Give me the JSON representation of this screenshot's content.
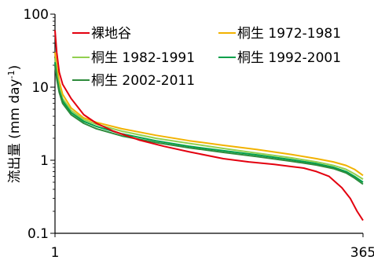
{
  "chart_data": {
    "type": "line",
    "y_scale": "log",
    "ylim": [
      0.1,
      100
    ],
    "xlim": [
      1,
      365
    ],
    "ylabel": "流出量 (mm day-1)",
    "ylabel_main": "流出量 (mm day",
    "ylabel_sup": "-1",
    "ylabel_close": ")",
    "y_ticks": [
      "0.1",
      "1",
      "10",
      "100"
    ],
    "x_ticks": [
      "1",
      "365"
    ],
    "grid": false,
    "legend_position": "top-right",
    "series": [
      {
        "name": "裸地谷",
        "color": "#e3000f",
        "x": [
          1,
          3,
          6,
          10,
          20,
          35,
          50,
          70,
          100,
          130,
          160,
          200,
          230,
          260,
          280,
          295,
          310,
          325,
          340,
          350,
          358,
          365
        ],
        "y": [
          60,
          30,
          16,
          11,
          7,
          4.2,
          3.2,
          2.5,
          1.9,
          1.55,
          1.3,
          1.05,
          0.95,
          0.88,
          0.82,
          0.78,
          0.7,
          0.6,
          0.42,
          0.3,
          0.2,
          0.15
        ]
      },
      {
        "name": "桐生 1972-1981",
        "color": "#f2b200",
        "x": [
          1,
          3,
          6,
          10,
          20,
          35,
          50,
          80,
          120,
          160,
          200,
          240,
          280,
          310,
          330,
          345,
          355,
          365
        ],
        "y": [
          30,
          20,
          12,
          8,
          5.2,
          3.8,
          3.3,
          2.7,
          2.2,
          1.85,
          1.6,
          1.4,
          1.2,
          1.05,
          0.95,
          0.85,
          0.75,
          0.62
        ]
      },
      {
        "name": "桐生 1982-1991",
        "color": "#92d050",
        "x": [
          1,
          3,
          6,
          10,
          20,
          35,
          50,
          80,
          120,
          160,
          200,
          240,
          280,
          310,
          330,
          345,
          355,
          365
        ],
        "y": [
          25,
          16,
          10,
          7,
          4.8,
          3.6,
          3.1,
          2.5,
          2.0,
          1.7,
          1.45,
          1.25,
          1.08,
          0.95,
          0.85,
          0.75,
          0.65,
          0.55
        ]
      },
      {
        "name": "桐生 1992-2001",
        "color": "#00a04a",
        "x": [
          1,
          3,
          6,
          10,
          20,
          35,
          50,
          80,
          120,
          160,
          200,
          240,
          280,
          310,
          330,
          345,
          355,
          365
        ],
        "y": [
          22,
          14,
          9,
          6.5,
          4.5,
          3.4,
          2.9,
          2.3,
          1.85,
          1.55,
          1.35,
          1.18,
          1.02,
          0.9,
          0.8,
          0.7,
          0.6,
          0.5
        ]
      },
      {
        "name": "桐生 2002-2011",
        "color": "#2e8b3c",
        "x": [
          1,
          3,
          6,
          10,
          20,
          35,
          50,
          80,
          120,
          160,
          200,
          240,
          280,
          310,
          330,
          345,
          355,
          365
        ],
        "y": [
          20,
          13,
          8.5,
          6,
          4.2,
          3.2,
          2.7,
          2.15,
          1.75,
          1.48,
          1.28,
          1.12,
          0.97,
          0.86,
          0.77,
          0.67,
          0.57,
          0.47
        ]
      }
    ]
  }
}
